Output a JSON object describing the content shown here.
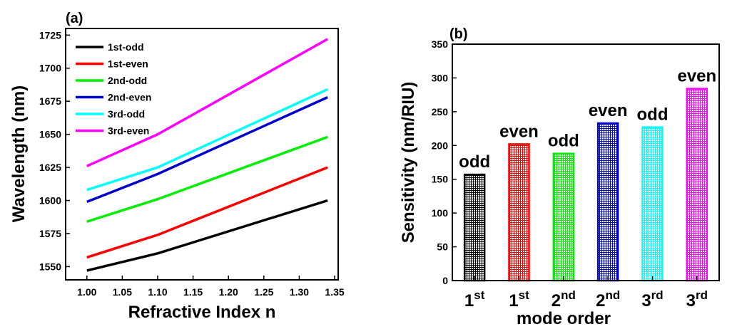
{
  "chart_data": [
    {
      "type": "line",
      "panel_label": "(a)",
      "xlabel": "Refractive Index  n",
      "ylabel": "Wavelength (nm)",
      "xlim": [
        0.97,
        1.355
      ],
      "ylim": [
        1540,
        1730
      ],
      "xticks": [
        "1.00",
        "1.05",
        "1.10",
        "1.15",
        "1.20",
        "1.25",
        "1.30",
        "1.35"
      ],
      "yticks": [
        "1550",
        "1575",
        "1600",
        "1625",
        "1650",
        "1675",
        "1700",
        "1725"
      ],
      "legend_position": "top-left",
      "x": [
        1.0,
        1.1,
        1.34
      ],
      "series": [
        {
          "name": "1st-odd",
          "color": "#000000",
          "values": [
            1547,
            1560,
            1600
          ]
        },
        {
          "name": "1st-even",
          "color": "#ff0000",
          "values": [
            1557,
            1574,
            1625
          ]
        },
        {
          "name": "2nd-odd",
          "color": "#00ee00",
          "values": [
            1584,
            1601,
            1648
          ]
        },
        {
          "name": "2nd-even",
          "color": "#0000cc",
          "values": [
            1599,
            1620,
            1678
          ]
        },
        {
          "name": "3rd-odd",
          "color": "#00ffff",
          "values": [
            1608,
            1625,
            1684
          ]
        },
        {
          "name": "3rd-even",
          "color": "#ff00ff",
          "values": [
            1626,
            1650,
            1722
          ]
        }
      ]
    },
    {
      "type": "bar",
      "panel_label": "(b)",
      "xlabel": "mode order",
      "ylabel": "Sensitivity (nm/RIU)",
      "ylim": [
        0,
        350
      ],
      "yticks": [
        "0",
        "50",
        "100",
        "150",
        "200",
        "250",
        "300",
        "350"
      ],
      "categories": [
        {
          "base": "1",
          "sup": "st"
        },
        {
          "base": "1",
          "sup": "st"
        },
        {
          "base": "2",
          "sup": "nd"
        },
        {
          "base": "2",
          "sup": "nd"
        },
        {
          "base": "3",
          "sup": "rd"
        },
        {
          "base": "3",
          "sup": "rd"
        }
      ],
      "values": [
        157,
        202,
        188,
        233,
        227,
        284
      ],
      "bar_labels": [
        "odd",
        "even",
        "odd",
        "even",
        "odd",
        "even"
      ],
      "colors": [
        "#000000",
        "#ff0000",
        "#00ee00",
        "#0000cc",
        "#00ffff",
        "#ff00ff"
      ],
      "pattern": "grid-hatch"
    }
  ]
}
